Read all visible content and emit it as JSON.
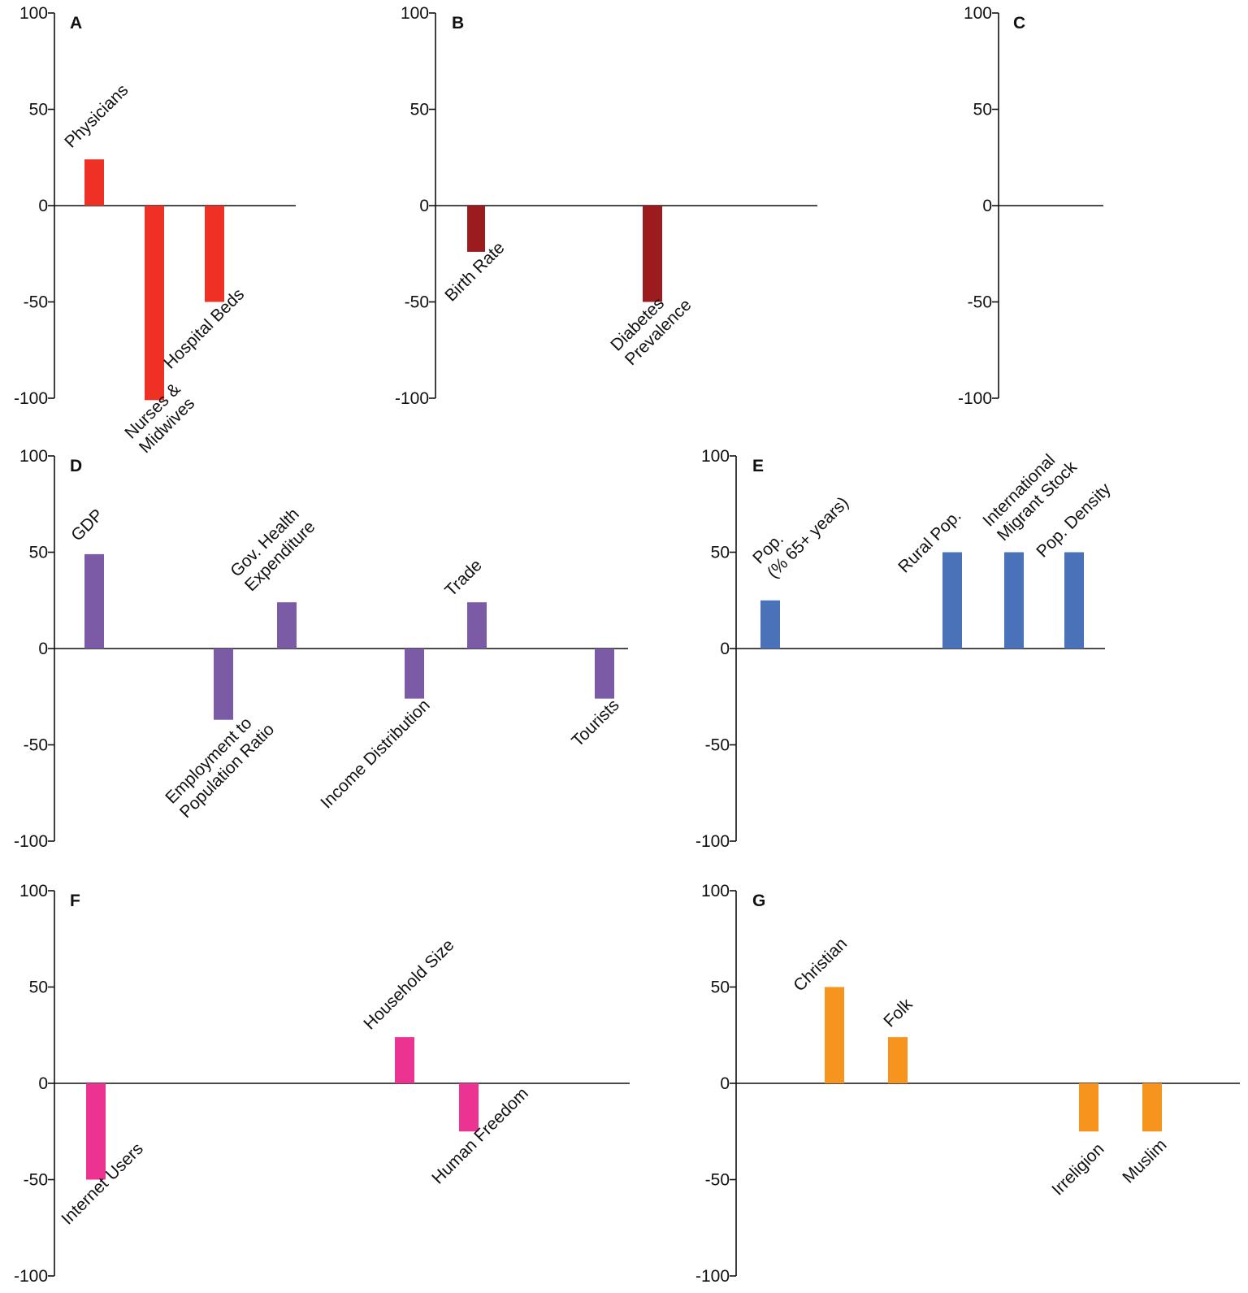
{
  "chart_data": [
    {
      "type": "bar",
      "panel": "A",
      "ylim": [
        -100,
        100
      ],
      "yticks": [
        "100",
        "50",
        "0",
        "-50",
        "-100"
      ],
      "color": "#ee3124",
      "bars": [
        {
          "label": [
            "Physicians"
          ],
          "value": 24
        },
        {
          "label": [
            "Nurses &",
            "Midwives"
          ],
          "value": -101
        },
        {
          "label": [
            "Hospital Beds"
          ],
          "value": -50
        }
      ]
    },
    {
      "type": "bar",
      "panel": "B",
      "ylim": [
        -100,
        100
      ],
      "yticks": [
        "100",
        "50",
        "0",
        "-50",
        "-100"
      ],
      "color": "#9b1b1e",
      "bars": [
        {
          "label": [
            "Birth Rate"
          ],
          "value": -24
        },
        {
          "label": [
            "Diabetes",
            "Prevalence"
          ],
          "value": -50
        }
      ]
    },
    {
      "type": "bar",
      "panel": "C",
      "ylim": [
        -100,
        100
      ],
      "yticks": [
        "100",
        "50",
        "0",
        "-50",
        "-100"
      ],
      "color": "#000000",
      "bars": []
    },
    {
      "type": "bar",
      "panel": "D",
      "ylim": [
        -100,
        100
      ],
      "yticks": [
        "100",
        "50",
        "0",
        "-50",
        "-100"
      ],
      "color": "#7b5aa6",
      "bars": [
        {
          "label": [
            "GDP"
          ],
          "value": 49
        },
        {
          "label": [
            "Employment to",
            "Population Ratio"
          ],
          "value": -37
        },
        {
          "label": [
            "Gov. Health",
            "Expenditure"
          ],
          "value": 24
        },
        {
          "label": [
            "Income Distribution"
          ],
          "value": -26
        },
        {
          "label": [
            "Trade"
          ],
          "value": 24
        },
        {
          "label": [
            "Tourists"
          ],
          "value": -26
        }
      ]
    },
    {
      "type": "bar",
      "panel": "E",
      "ylim": [
        -100,
        100
      ],
      "yticks": [
        "100",
        "50",
        "0",
        "-50",
        "-100"
      ],
      "color": "#4a72b8",
      "bars": [
        {
          "label": [
            "Pop.",
            "(% 65+ years)"
          ],
          "value": 25
        },
        {
          "label": [
            "Rural Pop."
          ],
          "value": 50
        },
        {
          "label": [
            "International",
            "Migrant Stock"
          ],
          "value": 50
        },
        {
          "label": [
            "Pop. Density"
          ],
          "value": 50
        }
      ]
    },
    {
      "type": "bar",
      "panel": "F",
      "ylim": [
        -100,
        100
      ],
      "yticks": [
        "100",
        "50",
        "0",
        "-50",
        "-100"
      ],
      "color": "#ec3391",
      "bars": [
        {
          "label": [
            "Internet Users"
          ],
          "value": -50
        },
        {
          "label": [
            "Household Size"
          ],
          "value": 24
        },
        {
          "label": [
            "Human Freedom"
          ],
          "value": -25
        }
      ]
    },
    {
      "type": "bar",
      "panel": "G",
      "ylim": [
        -100,
        100
      ],
      "yticks": [
        "100",
        "50",
        "0",
        "-50",
        "-100"
      ],
      "color": "#f7941d",
      "bars": [
        {
          "label": [
            "Christian"
          ],
          "value": 50
        },
        {
          "label": [
            "Folk"
          ],
          "value": 24
        },
        {
          "label": [
            "Irreligion"
          ],
          "value": -25
        },
        {
          "label": [
            "Muslim"
          ],
          "value": -25
        }
      ]
    }
  ]
}
